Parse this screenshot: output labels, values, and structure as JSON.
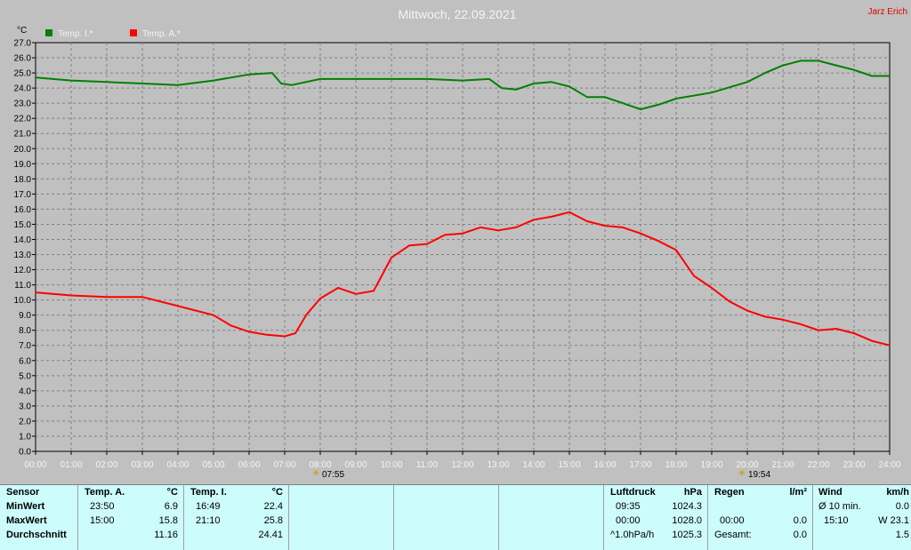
{
  "header": {
    "title": "Mittwoch, 22.09.2021",
    "author": "Jarz Erich"
  },
  "chart_data": {
    "type": "line",
    "ylabel": "°C",
    "ylim": [
      0,
      27
    ],
    "y_ticks": [
      "0.0",
      "1.0",
      "2.0",
      "3.0",
      "4.0",
      "5.0",
      "6.0",
      "7.0",
      "8.0",
      "9.0",
      "10.0",
      "11.0",
      "12.0",
      "13.0",
      "14.0",
      "15.0",
      "16.0",
      "17.0",
      "18.0",
      "19.0",
      "20.0",
      "21.0",
      "22.0",
      "23.0",
      "24.0",
      "25.0",
      "26.0",
      "27.0"
    ],
    "x_ticks": [
      "00:00",
      "01:00",
      "02:00",
      "03:00",
      "04:00",
      "05:00",
      "06:00",
      "07:00",
      "08:00",
      "09:00",
      "10:00",
      "11:00",
      "12:00",
      "13:00",
      "14:00",
      "15:00",
      "16:00",
      "17:00",
      "18:00",
      "19:00",
      "20:00",
      "21:00",
      "22:00",
      "23:00",
      "24:00"
    ],
    "grid": true,
    "legend_position": "top-left",
    "sunrise": "07:55",
    "sunset": "19:54",
    "series": [
      {
        "name": "Temp. I.*",
        "color": "#008000",
        "x": [
          0,
          1,
          2,
          3,
          4,
          5,
          6,
          6.65,
          6.9,
          7.2,
          8,
          9,
          10,
          11,
          12,
          12.75,
          13.1,
          13.5,
          14,
          14.5,
          15,
          15.5,
          16,
          16.5,
          17,
          17.5,
          18,
          19,
          20,
          20.5,
          21,
          21.5,
          22,
          22.5,
          23,
          23.5,
          24
        ],
        "y": [
          24.7,
          24.5,
          24.4,
          24.3,
          24.2,
          24.5,
          24.9,
          25.0,
          24.3,
          24.2,
          24.6,
          24.6,
          24.6,
          24.6,
          24.5,
          24.6,
          24.0,
          23.9,
          24.3,
          24.4,
          24.1,
          23.4,
          23.4,
          23.0,
          22.6,
          22.9,
          23.3,
          23.7,
          24.4,
          25.0,
          25.5,
          25.8,
          25.8,
          25.5,
          25.2,
          24.8,
          24.8
        ]
      },
      {
        "name": "Temp. A.*",
        "color": "#ff0000",
        "x": [
          0,
          1,
          2,
          3,
          4,
          5,
          5.5,
          6,
          6.5,
          7,
          7.3,
          7.6,
          8,
          8.5,
          9,
          9.5,
          10,
          10.5,
          11,
          11.5,
          12,
          12.5,
          13,
          13.5,
          14,
          14.5,
          15,
          15.5,
          16,
          16.5,
          17,
          17.5,
          18,
          18.5,
          19,
          19.5,
          20,
          20.5,
          21,
          21.5,
          22,
          22.5,
          23,
          23.5,
          24
        ],
        "y": [
          10.5,
          10.3,
          10.2,
          10.2,
          9.6,
          9.0,
          8.3,
          7.9,
          7.7,
          7.6,
          7.8,
          9.0,
          10.1,
          10.8,
          10.4,
          10.6,
          12.8,
          13.6,
          13.7,
          14.3,
          14.4,
          14.8,
          14.6,
          14.8,
          15.3,
          15.5,
          15.8,
          15.2,
          14.9,
          14.8,
          14.4,
          13.9,
          13.3,
          11.6,
          10.8,
          9.9,
          9.3,
          8.9,
          8.7,
          8.4,
          8.0,
          8.1,
          7.8,
          7.3,
          7.0
        ]
      }
    ]
  },
  "stats": {
    "sensor": {
      "header": "Sensor",
      "min": "MinWert",
      "max": "MaxWert",
      "avg": "Durchschnitt"
    },
    "temp_a": {
      "header": "Temp. A.",
      "unit": "°C",
      "min_time": "23:50",
      "min_val": "6.9",
      "max_time": "15:00",
      "max_val": "15.8",
      "avg": "11.16"
    },
    "temp_i": {
      "header": "Temp. I.",
      "unit": "°C",
      "min_time": "16:49",
      "min_val": "22.4",
      "max_time": "21:10",
      "max_val": "25.8",
      "avg": "24.41"
    },
    "pressure": {
      "header": "Luftdruck",
      "unit": "hPa",
      "r1_label": "09:35",
      "r1_val": "1024.3",
      "r2_label": "00:00",
      "r2_val": "1028.0",
      "r3_label": "^1.0hPa/h",
      "r3_val": "1025.3"
    },
    "rain": {
      "header": "Regen",
      "unit": "l/m²",
      "r2_label": "00:00",
      "r2_val": "0.0",
      "r3_label": "Gesamt:",
      "r3_val": "0.0"
    },
    "wind": {
      "header": "Wind",
      "unit": "km/h",
      "r1_label": "Ø 10 min.",
      "r1_val": "0.0",
      "r2_label": "15:10",
      "r2_val": "W 23.1",
      "r3_val": "1.5"
    }
  }
}
